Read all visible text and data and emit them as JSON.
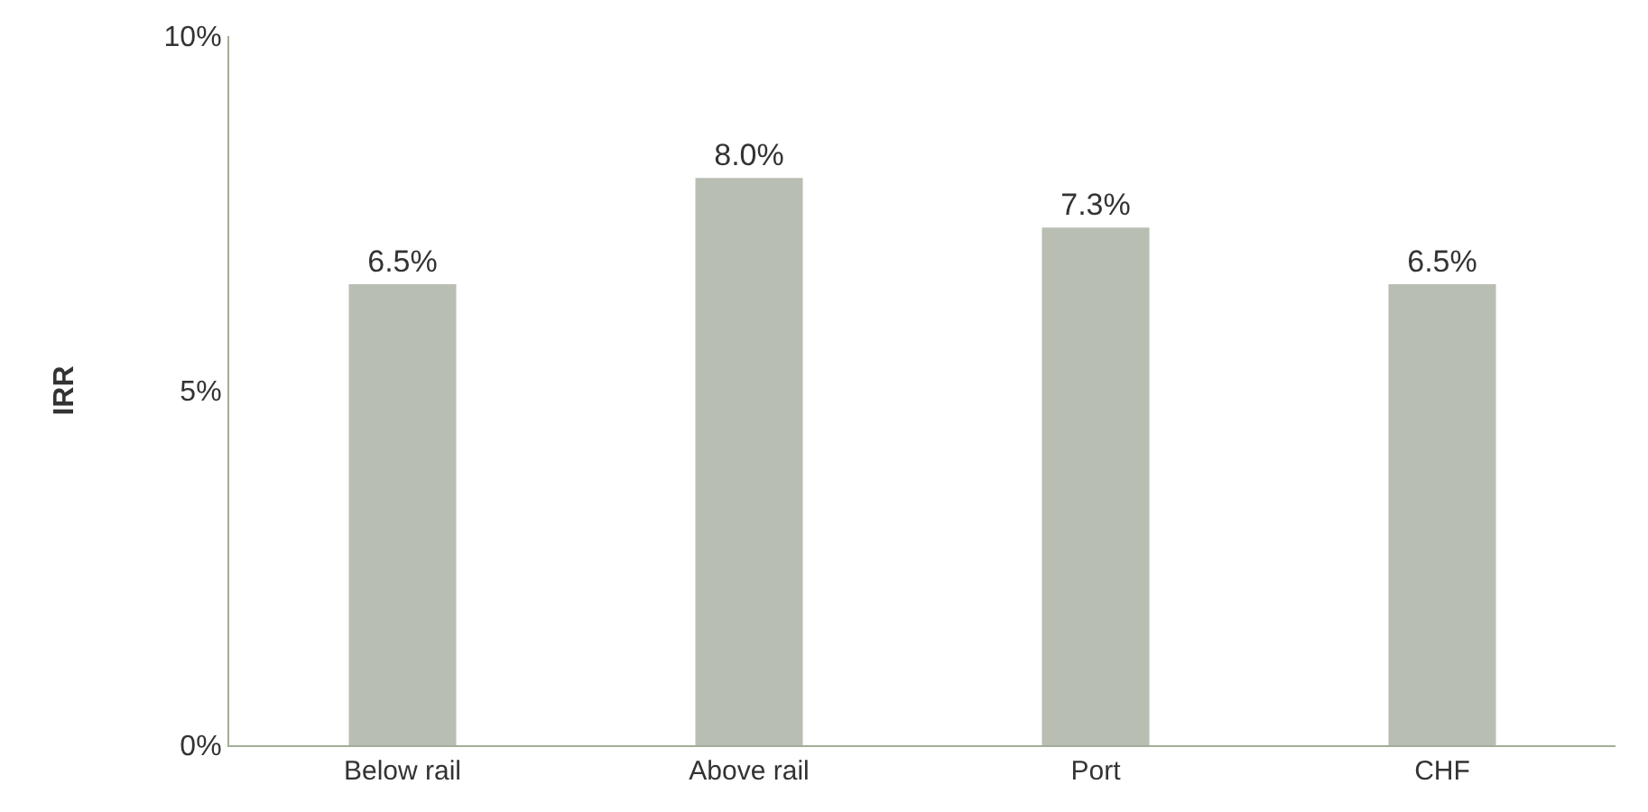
{
  "chart_data": {
    "type": "bar",
    "ylabel": "IRR",
    "categories": [
      "Below rail",
      "Above rail",
      "Port",
      "CHF"
    ],
    "values": [
      6.5,
      8.0,
      7.3,
      6.5
    ],
    "value_labels": [
      "6.5%",
      "8.0%",
      "7.3%",
      "6.5%"
    ],
    "color": "#b9beb3",
    "ylim": [
      0,
      10
    ],
    "yticks": [
      {
        "value": 0,
        "label": "0%"
      },
      {
        "value": 5,
        "label": "5%"
      },
      {
        "value": 10,
        "label": "10%"
      }
    ]
  }
}
